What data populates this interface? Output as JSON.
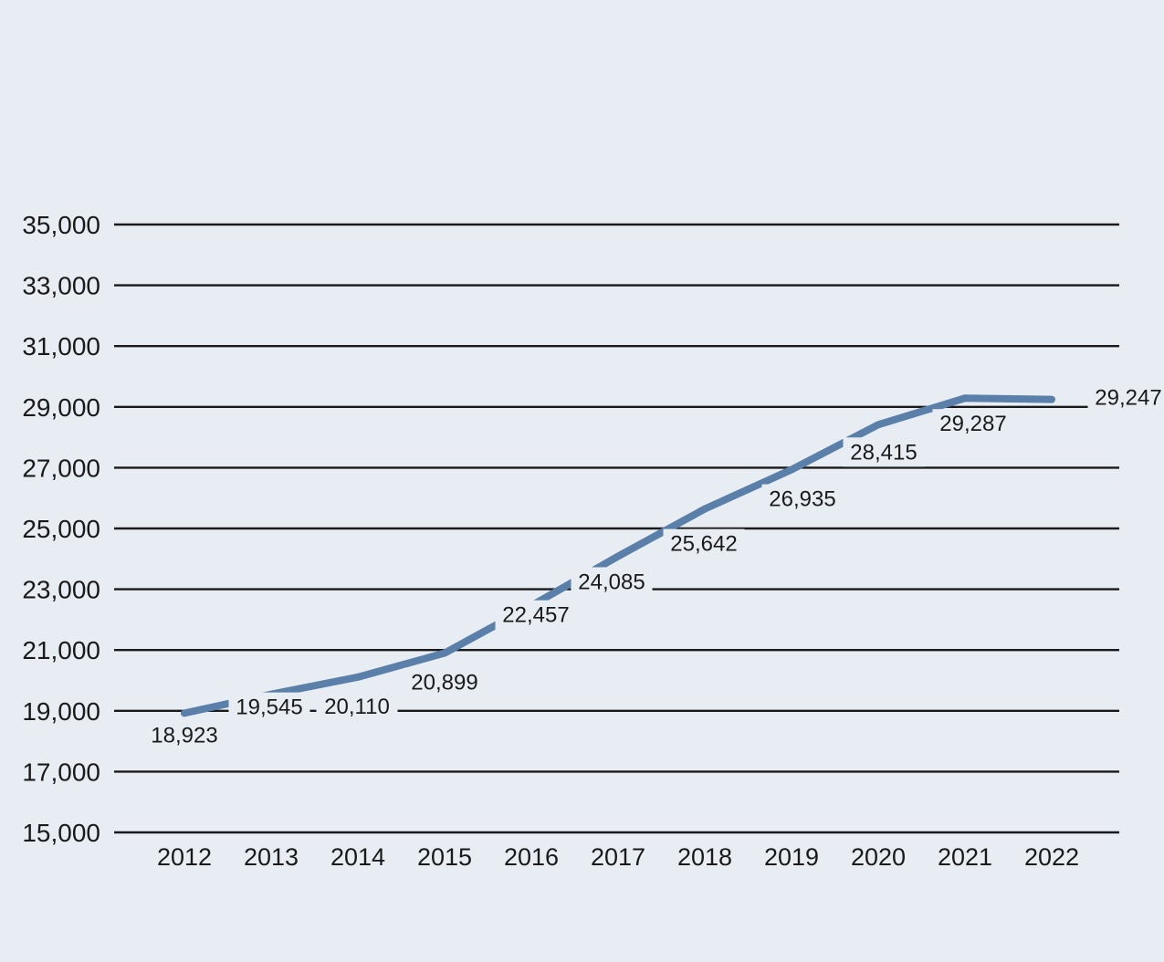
{
  "chart_data": {
    "type": "line",
    "title": "",
    "xlabel": "",
    "ylabel": "",
    "x": [
      "2012",
      "2013",
      "2014",
      "2015",
      "2016",
      "2017",
      "2018",
      "2019",
      "2020",
      "2021",
      "2022"
    ],
    "series": [
      {
        "values": [
          18923,
          19545,
          20110,
          20899,
          22457,
          24085,
          25642,
          26935,
          28415,
          29287,
          29247
        ],
        "labels": [
          "18,923",
          "19,545",
          "20,110",
          "20,899",
          "22,457",
          "24,085",
          "25,642",
          "26,935",
          "28,415",
          "29,287",
          "29,247"
        ],
        "color": "#5a7fa8"
      }
    ],
    "ylim": [
      15000,
      35000
    ],
    "yticks": [
      15000,
      17000,
      19000,
      21000,
      23000,
      25000,
      27000,
      29000,
      31000,
      33000,
      35000
    ],
    "ytick_labels": [
      "15,000",
      "17,000",
      "19,000",
      "21,000",
      "23,000",
      "25,000",
      "27,000",
      "29,000",
      "31,000",
      "33,000",
      "35,000"
    ],
    "grid": true,
    "legend": "none",
    "background": "#e8edf4"
  }
}
